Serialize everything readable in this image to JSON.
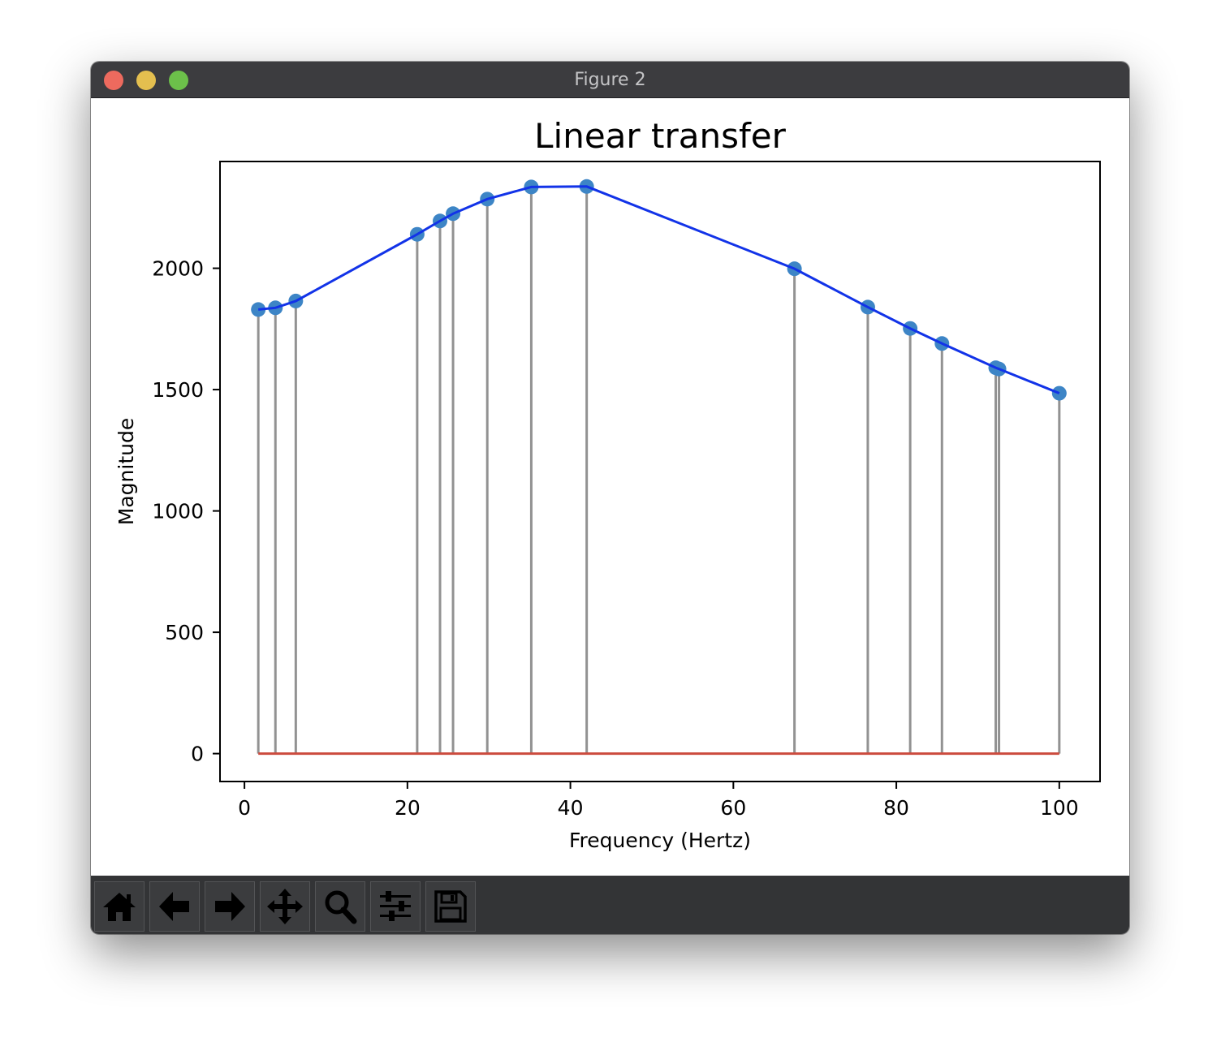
{
  "window": {
    "title": "Figure 2"
  },
  "toolbar": {
    "buttons": [
      {
        "name": "home-button",
        "icon": "home-icon"
      },
      {
        "name": "back-button",
        "icon": "arrow-left-icon"
      },
      {
        "name": "forward-button",
        "icon": "arrow-right-icon"
      },
      {
        "name": "pan-button",
        "icon": "move-icon"
      },
      {
        "name": "zoom-button",
        "icon": "magnifier-icon"
      },
      {
        "name": "configure-subplots-button",
        "icon": "sliders-icon"
      },
      {
        "name": "save-button",
        "icon": "floppy-disk-icon"
      }
    ]
  },
  "chart_data": {
    "type": "stem",
    "title": "Linear transfer",
    "xlabel": "Frequency (Hertz)",
    "ylabel": "Magnitude",
    "xlim": [
      -3,
      105
    ],
    "ylim": [
      -115,
      2440
    ],
    "xticks": [
      0,
      20,
      40,
      60,
      80,
      100
    ],
    "yticks": [
      0,
      500,
      1000,
      1500,
      2000
    ],
    "x": [
      1.7,
      3.8,
      6.3,
      21.2,
      24.0,
      25.6,
      29.8,
      35.2,
      42.0,
      67.5,
      76.5,
      81.7,
      85.6,
      92.2,
      92.6,
      100.0
    ],
    "y": [
      1830,
      1837,
      1865,
      2140,
      2195,
      2225,
      2285,
      2335,
      2337,
      1998,
      1840,
      1752,
      1690,
      1590,
      1585,
      1485
    ],
    "baseline": 0,
    "grid": false,
    "colors": {
      "markers": "#3d85c6",
      "line": "#1233e8",
      "stems": "#929292",
      "baseline": "#cc4b3e"
    }
  }
}
